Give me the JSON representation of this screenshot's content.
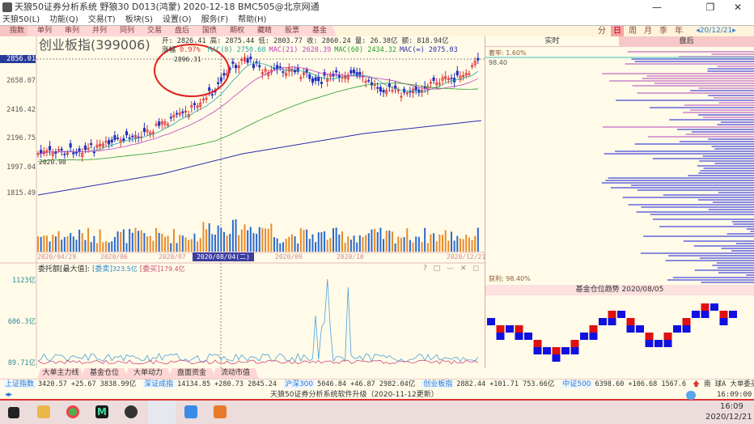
{
  "window": {
    "title": "天狼50证券分析系统 野狼30 D013(鸿蒙) 2020-12-18 BMC505@北京网通"
  },
  "menu": [
    "天狼50(L)",
    "功能(Q)",
    "交易(T)",
    "板块(S)",
    "设置(O)",
    "服务(F)",
    "帮助(H)"
  ],
  "tabs": [
    "指数",
    "单列",
    "串列",
    "并列",
    "同列",
    "交易",
    "盘后",
    "国债",
    "期权",
    "藏睛",
    "股票",
    "基金"
  ],
  "periods": [
    "分",
    "日",
    "周",
    "月",
    "季",
    "年"
  ],
  "active_period": "日",
  "date_nav": "◂20/12/21▸",
  "stock": {
    "name": "创业板指(399006)",
    "line1": "开: 2826.41 高: 2875.44 低: 2803.77 收: 2860.24 量: 26.38亿 额: 818.94亿",
    "change_label": "涨幅",
    "change": "0.97%",
    "ma": [
      {
        "label": "MAC(8) 2750.68",
        "color": "#2aa6a6"
      },
      {
        "label": "MAC(21) 2628.39",
        "color": "#c040c0"
      },
      {
        "label": "MAC(60) 2434.32",
        "color": "#2a9a2a"
      },
      {
        "label": "MAC(∞) 2075.03",
        "color": "#2a2ab0"
      }
    ],
    "high_marker": "2896.31",
    "low_marker": "2020.98"
  },
  "price_axis": [
    "2856.01",
    "2658.07",
    "2416.42",
    "2196.75",
    "1997.04",
    "1815.49"
  ],
  "date_axis": [
    "2020/04/29",
    "2020/06",
    "2020/07",
    "2020/09",
    "2020/10",
    "2020/12/21"
  ],
  "cursor_date": "2020/08/04(二)",
  "sub_panel": {
    "title": "委托额[最大值]:",
    "sell_label": "[委卖]",
    "sell_value": "323.5亿",
    "buy_label": "[委买]",
    "buy_value": "179.4亿",
    "axis": [
      "1123亿",
      "606.3亿",
      "89.71亿"
    ],
    "controls": [
      "?",
      "□",
      "—",
      "✕",
      "◻"
    ]
  },
  "right_panel": {
    "tabs": [
      "实时",
      "盘后"
    ],
    "top_label": "套牢: 1.60%",
    "top_value": "98.40",
    "bottom_label": "获利: 98.40%",
    "trend_title": "基金仓位趋势 2020/08/05"
  },
  "bottom_tabs": [
    "大单主力线",
    "基金仓位",
    "大单动力",
    "盘面资金",
    "流动市值"
  ],
  "ticker": [
    {
      "name": "上证指数",
      "text": "3420.57 +25.67 3838.99亿"
    },
    {
      "name": "深证成指",
      "text": "14134.85 +280.73 2845.24"
    },
    {
      "name": "沪深300",
      "text": "5046.84 +46.87 2982.04亿"
    },
    {
      "name": "创业板指",
      "text": "2882.44 +101.71 753.66亿"
    },
    {
      "name": "中证500",
      "text": "6398.60 +106.68 1567.6"
    }
  ],
  "ticker_extra": "南 球A 大单委买:1116手,7.39",
  "status": {
    "message": "天狼50证券分析系统软件升级（2020-11-12更新）",
    "time": "16:09:00"
  },
  "taskbar": {
    "time": "16:09",
    "date": "2020/12/21"
  }
}
